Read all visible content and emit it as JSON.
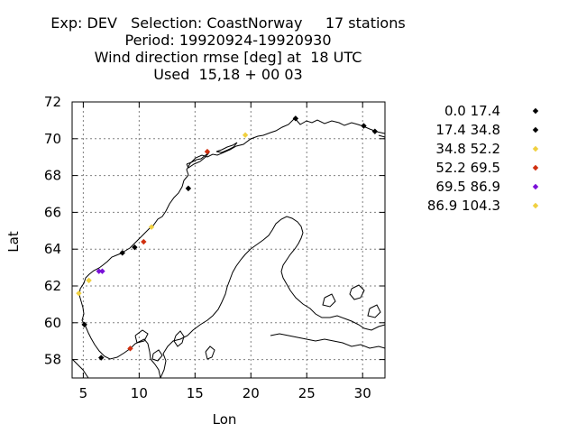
{
  "title_lines": [
    "Exp: DEV   Selection: CoastNorway     17 stations",
    "Period: 19920924-19920930",
    "Wind direction rmse [deg] at  18 UTC",
    "Used  15,18 + 00 03"
  ],
  "chart_data": {
    "type": "scatter",
    "title": "Wind direction rmse [deg] at  18 UTC",
    "xlabel": "Lon",
    "ylabel": "Lat",
    "xlim": [
      4,
      32
    ],
    "ylim": [
      57,
      72
    ],
    "xticks": [
      5,
      10,
      15,
      20,
      25,
      30
    ],
    "yticks": [
      58,
      60,
      62,
      64,
      66,
      68,
      70,
      72
    ],
    "grid": true,
    "legend_position": "right",
    "classes": [
      {
        "label": "0.0 17.4",
        "color": "#000000"
      },
      {
        "label": "17.4 34.8",
        "color": "#000000"
      },
      {
        "label": "34.8 52.2",
        "color": "#f0d040"
      },
      {
        "label": "52.2 69.5",
        "color": "#d03010"
      },
      {
        "label": "69.5 86.9",
        "color": "#7a10d8"
      },
      {
        "label": "86.9 104.3",
        "color": "#f0d040"
      }
    ],
    "points": [
      {
        "lon": 24.0,
        "lat": 71.1,
        "cls": 0
      },
      {
        "lon": 30.1,
        "lat": 70.7,
        "cls": 0
      },
      {
        "lon": 31.1,
        "lat": 70.4,
        "cls": 0
      },
      {
        "lon": 14.4,
        "lat": 67.3,
        "cls": 0
      },
      {
        "lon": 9.6,
        "lat": 64.1,
        "cls": 1
      },
      {
        "lon": 8.5,
        "lat": 63.8,
        "cls": 1
      },
      {
        "lon": 5.1,
        "lat": 59.9,
        "cls": 1
      },
      {
        "lon": 6.6,
        "lat": 58.1,
        "cls": 1
      },
      {
        "lon": 19.5,
        "lat": 70.2,
        "cls": 2
      },
      {
        "lon": 11.1,
        "lat": 65.2,
        "cls": 5
      },
      {
        "lon": 4.6,
        "lat": 61.6,
        "cls": 2
      },
      {
        "lon": 5.5,
        "lat": 62.3,
        "cls": 2
      },
      {
        "lon": 16.1,
        "lat": 69.3,
        "cls": 3
      },
      {
        "lon": 10.4,
        "lat": 64.4,
        "cls": 3
      },
      {
        "lon": 9.2,
        "lat": 58.6,
        "cls": 3
      },
      {
        "lon": 6.4,
        "lat": 62.8,
        "cls": 4
      },
      {
        "lon": 6.7,
        "lat": 62.8,
        "cls": 4
      }
    ]
  }
}
